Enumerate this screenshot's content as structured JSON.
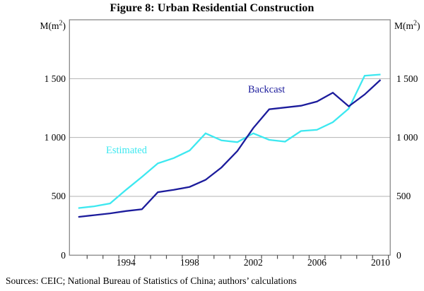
{
  "chart_data": {
    "type": "line",
    "title": "Figure 8: Urban Residential Construction",
    "axis_unit": {
      "base": "M(m",
      "sup": "2",
      "close": ")"
    },
    "x": [
      1991,
      1992,
      1993,
      1994,
      1995,
      1996,
      1997,
      1998,
      1999,
      2000,
      2001,
      2002,
      2003,
      2004,
      2005,
      2006,
      2007,
      2008,
      2009,
      2010
    ],
    "series": [
      {
        "name": "Estimated",
        "color": "#3DE8F0",
        "values": [
          400,
          415,
          440,
          555,
          665,
          780,
          825,
          890,
          1035,
          975,
          960,
          1035,
          980,
          965,
          1055,
          1065,
          1130,
          1245,
          1525,
          1535
        ],
        "label_pos": {
          "x": 150,
          "y": 205
        }
      },
      {
        "name": "Backcast",
        "color": "#1C1C9C",
        "values": [
          325,
          340,
          355,
          375,
          390,
          535,
          555,
          580,
          640,
          745,
          885,
          1080,
          1240,
          1255,
          1270,
          1305,
          1380,
          1265,
          1365,
          1490
        ],
        "label_pos": {
          "x": 351,
          "y": 119
        }
      }
    ],
    "ylim": [
      0,
      2000
    ],
    "yticks": [
      {
        "value": 0,
        "label": "0"
      },
      {
        "value": 500,
        "label": "500"
      },
      {
        "value": 1000,
        "label": "1 000"
      },
      {
        "value": 1500,
        "label": "1 500"
      }
    ],
    "gridlines": [
      500,
      1000,
      1500
    ],
    "xtick_labels": [
      {
        "year": 1994,
        "label": "1994"
      },
      {
        "year": 1998,
        "label": "1998"
      },
      {
        "year": 2002,
        "label": "2002"
      },
      {
        "year": 2006,
        "label": "2006"
      },
      {
        "year": 2010,
        "label": "2010"
      }
    ],
    "grid": "horizontal",
    "legend_position": "inline-annotations",
    "colors": {
      "box_border": "#7f7f7f",
      "gridline": "#b3b3b3",
      "tick": "#4d4d4d",
      "text": "#000000"
    }
  },
  "sources_line": "Sources:  CEIC; National Bureau of Statistics of China; authors’ calculations"
}
